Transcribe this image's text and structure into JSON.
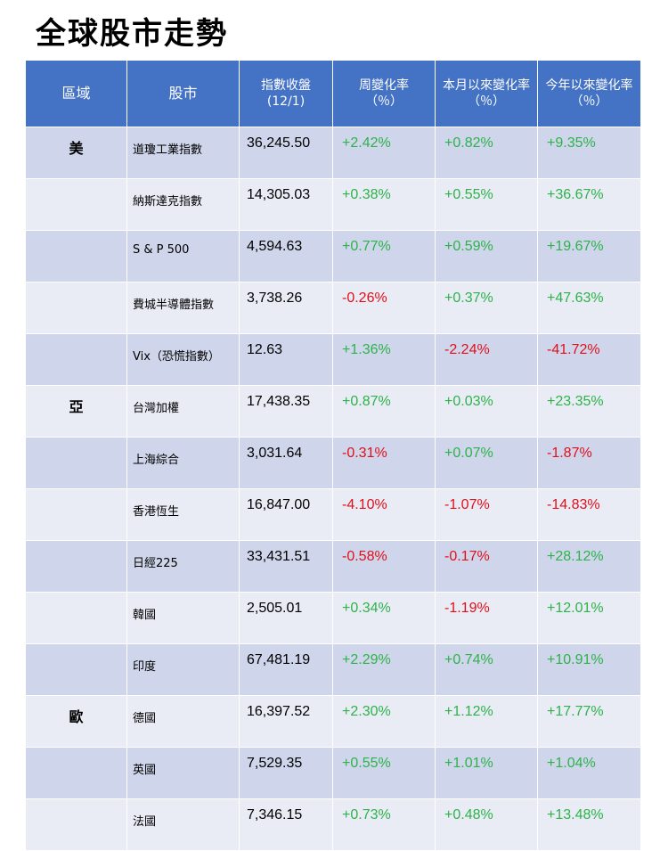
{
  "title": "全球股市走勢",
  "colors": {
    "header_bg": "#4472c4",
    "row_odd": "#cfd5ea",
    "row_even": "#e9ebf5",
    "positive": "#2db34a",
    "negative": "#e0101a"
  },
  "headers": [
    [
      "區域"
    ],
    [
      "股市"
    ],
    [
      "指數收盤",
      "(12/1)"
    ],
    [
      "周變化率",
      "（％）"
    ],
    [
      "本月以來變化率",
      "（％）"
    ],
    [
      "今年以來變化率",
      "（％）"
    ]
  ],
  "rows": [
    {
      "region": "美",
      "name": "道瓊工業指數",
      "close": "36,245.50",
      "week": "+2.42%",
      "month": "+0.82%",
      "ytd": "+9.35%"
    },
    {
      "region": "",
      "name": "納斯達克指數",
      "close": "14,305.03",
      "week": "+0.38%",
      "month": "+0.55%",
      "ytd": "+36.67%"
    },
    {
      "region": "",
      "name": "S & P 500",
      "close": "4,594.63",
      "week": "+0.77%",
      "month": "+0.59%",
      "ytd": "+19.67%"
    },
    {
      "region": "",
      "name": "費城半導體指數",
      "close": "3,738.26",
      "week": "-0.26%",
      "month": "+0.37%",
      "ytd": "+47.63%"
    },
    {
      "region": "",
      "name": "Vix（恐慌指數）",
      "close": "12.63",
      "week": "+1.36%",
      "month": "-2.24%",
      "ytd": "-41.72%"
    },
    {
      "region": "亞",
      "name": "台灣加權",
      "close": "17,438.35",
      "week": "+0.87%",
      "month": "+0.03%",
      "ytd": "+23.35%"
    },
    {
      "region": "",
      "name": "上海綜合",
      "close": "3,031.64",
      "week": "-0.31%",
      "month": "+0.07%",
      "ytd": "-1.87%"
    },
    {
      "region": "",
      "name": "香港恆生",
      "close": "16,847.00",
      "week": "-4.10%",
      "month": "-1.07%",
      "ytd": "-14.83%"
    },
    {
      "region": "",
      "name": "日經225",
      "close": "33,431.51",
      "week": "-0.58%",
      "month": "-0.17%",
      "ytd": "+28.12%"
    },
    {
      "region": "",
      "name": "韓國",
      "close": "2,505.01",
      "week": "+0.34%",
      "month": "-1.19%",
      "ytd": "+12.01%"
    },
    {
      "region": "",
      "name": "印度",
      "close": "67,481.19",
      "week": "+2.29%",
      "month": "+0.74%",
      "ytd": "+10.91%"
    },
    {
      "region": "歐",
      "name": "德國",
      "close": "16,397.52",
      "week": "+2.30%",
      "month": "+1.12%",
      "ytd": "+17.77%"
    },
    {
      "region": "",
      "name": "英國",
      "close": "7,529.35",
      "week": "+0.55%",
      "month": "+1.01%",
      "ytd": "+1.04%"
    },
    {
      "region": "",
      "name": "法國",
      "close": "7,346.15",
      "week": "+0.73%",
      "month": "+0.48%",
      "ytd": "+13.48%"
    }
  ]
}
